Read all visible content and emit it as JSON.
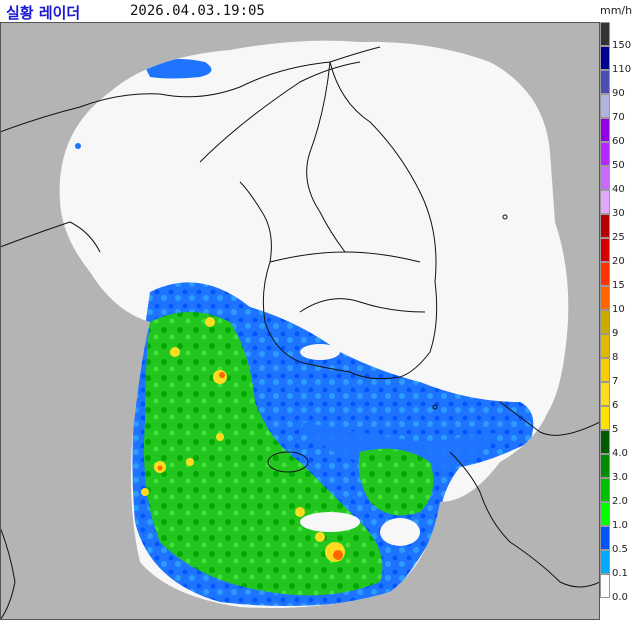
{
  "header": {
    "title": "실황 레이더",
    "timestamp": "2026.04.03.19:05",
    "unit": "mm/h"
  },
  "colors": {
    "background_outside": "#b4b4b4",
    "coverage": "#f7f7f7",
    "coastline": "#111111",
    "frame": "#555555"
  },
  "legend": {
    "items": [
      {
        "label": "150",
        "color": "#333333"
      },
      {
        "label": "110",
        "color": "#000390"
      },
      {
        "label": "90",
        "color": "#4c4eb1"
      },
      {
        "label": "70",
        "color": "#b3b4de"
      },
      {
        "label": "60",
        "color": "#9300e4"
      },
      {
        "label": "50",
        "color": "#b329ff"
      },
      {
        "label": "40",
        "color": "#c969ff"
      },
      {
        "label": "30",
        "color": "#e0a9ff"
      },
      {
        "label": "25",
        "color": "#b40000"
      },
      {
        "label": "20",
        "color": "#d20000"
      },
      {
        "label": "15",
        "color": "#ff3200"
      },
      {
        "label": "10",
        "color": "#ff6600"
      },
      {
        "label": "9",
        "color": "#ccaa00"
      },
      {
        "label": "8",
        "color": "#e0b900"
      },
      {
        "label": "7",
        "color": "#f9cd00"
      },
      {
        "label": "6",
        "color": "#ffdc1f"
      },
      {
        "label": "5",
        "color": "#ffe100"
      },
      {
        "label": "4.0",
        "color": "#005a00"
      },
      {
        "label": "3.0",
        "color": "#008c00"
      },
      {
        "label": "2.0",
        "color": "#00be00"
      },
      {
        "label": "1.0",
        "color": "#00ff00"
      },
      {
        "label": "0.5",
        "color": "#0055ff"
      },
      {
        "label": "0.1",
        "color": "#00aaff"
      },
      {
        "label": "0.0",
        "color": "#ffffff"
      }
    ]
  }
}
